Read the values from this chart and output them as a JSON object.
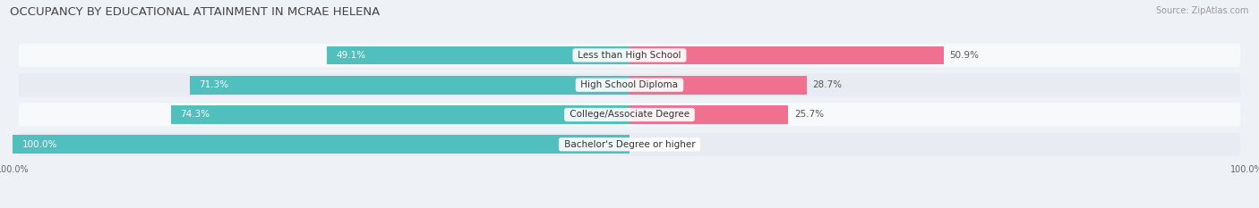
{
  "title": "OCCUPANCY BY EDUCATIONAL ATTAINMENT IN MCRAE HELENA",
  "source": "Source: ZipAtlas.com",
  "categories": [
    "Less than High School",
    "High School Diploma",
    "College/Associate Degree",
    "Bachelor's Degree or higher"
  ],
  "owner_pct": [
    49.1,
    71.3,
    74.3,
    100.0
  ],
  "renter_pct": [
    50.9,
    28.7,
    25.7,
    0.0
  ],
  "owner_color": "#52bfbf",
  "renter_color": "#f07090",
  "renter_color_light": "#f5a0b8",
  "bg_color": "#eef2f7",
  "row_bg_even": "#f8f9fb",
  "row_bg_odd": "#e8ecf2",
  "title_fontsize": 9.5,
  "label_fontsize": 7.5,
  "pct_fontsize": 7.5,
  "tick_fontsize": 7,
  "source_fontsize": 7,
  "legend_fontsize": 7.5,
  "bar_height": 0.62
}
